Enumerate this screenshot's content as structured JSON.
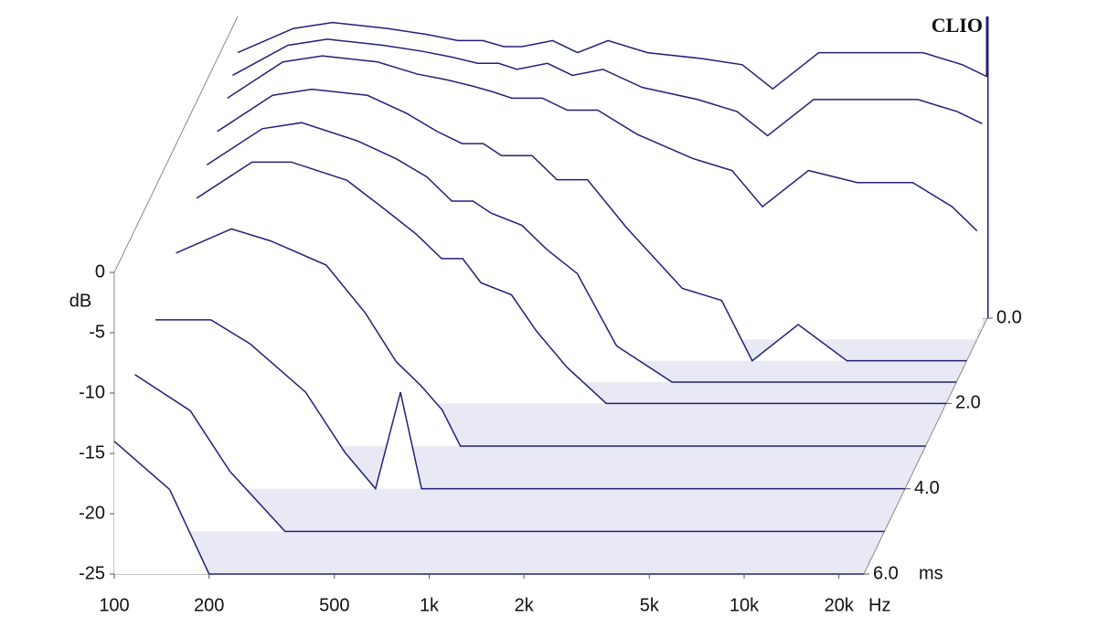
{
  "chart_data": {
    "type": "waterfall",
    "brand": "CLIO",
    "x_label": "Hz",
    "y_label": "dB",
    "z_label": "ms",
    "color": "#20207a",
    "xscale": "log",
    "xlim": [
      100,
      24000
    ],
    "ylim": [
      -25,
      0
    ],
    "zlim": [
      0,
      6
    ],
    "xticks": [
      100,
      200,
      500,
      {
        "value": 1000,
        "label": "1k"
      },
      {
        "value": 2000,
        "label": "2k"
      },
      {
        "value": 5000,
        "label": "5k"
      },
      {
        "value": 10000,
        "label": "10k"
      },
      {
        "value": 20000,
        "label": "20k"
      }
    ],
    "yticks": [
      0,
      -5,
      -10,
      -15,
      -20,
      -25
    ],
    "zticks": [
      {
        "value": 0,
        "label": "0.0"
      },
      {
        "value": 2,
        "label": "2.0"
      },
      {
        "value": 4,
        "label": "4.0"
      },
      {
        "value": 6,
        "label": "6.0"
      }
    ],
    "x": [
      100,
      150,
      200,
      300,
      400,
      500,
      600,
      700,
      800,
      1000,
      1200,
      1500,
      2000,
      3000,
      4000,
      5000,
      7000,
      10000,
      15000,
      20000,
      24000
    ],
    "slices": [
      {
        "t": 0,
        "values": [
          -3,
          -1,
          -0.5,
          -1,
          -1.5,
          -2,
          -2,
          -2.5,
          -2.5,
          -2,
          -3,
          -2,
          -3,
          -3.5,
          -4,
          -6,
          -3,
          -3,
          -3,
          -4,
          -5
        ]
      },
      {
        "t": 0.25,
        "values": [
          -4,
          -1.5,
          -1,
          -1.5,
          -2,
          -2.5,
          -3,
          -3,
          -3.5,
          -3,
          -4,
          -3.5,
          -5,
          -6,
          -7,
          -9,
          -6,
          -6,
          -6,
          -7,
          -8
        ]
      },
      {
        "t": 0.5,
        "values": [
          -5,
          -2,
          -1.5,
          -2,
          -3,
          -3.5,
          -4,
          -4.5,
          -5,
          -5,
          -6,
          -6,
          -8,
          -10,
          -11,
          -14,
          -11,
          -12,
          -12,
          -14,
          -16
        ]
      },
      {
        "t": 1,
        "values": [
          -6,
          -3,
          -2.5,
          -3,
          -4.5,
          -6,
          -7,
          -7,
          -8,
          -8,
          -10,
          -10,
          -14,
          -19,
          -20,
          -25,
          -22,
          -25,
          -25,
          -25,
          -25
        ]
      },
      {
        "t": 1.5,
        "values": [
          -7,
          -4,
          -3.5,
          -5,
          -6.5,
          -8,
          -10,
          -10,
          -11,
          -12,
          -14,
          -16,
          -22,
          -25,
          -25,
          -25,
          -25,
          -25,
          -25,
          -25,
          -25
        ]
      },
      {
        "t": 2,
        "values": [
          -8,
          -5,
          -5,
          -6.5,
          -9,
          -11,
          -13,
          -13,
          -15,
          -16,
          -19,
          -22,
          -25,
          -25,
          -25,
          -25,
          -25,
          -25,
          -25,
          -25,
          -25
        ]
      },
      {
        "t": 3,
        "values": [
          -9,
          -7,
          -8,
          -10,
          -14,
          -18,
          -20,
          -22,
          -25,
          -25,
          -25,
          -25,
          -25,
          -25,
          -25,
          -25,
          -25,
          -25,
          -25,
          -25,
          -25
        ]
      },
      {
        "t": 4,
        "values": [
          -11,
          -11,
          -13,
          -17,
          -22,
          -25,
          -17,
          -25,
          -25,
          -25,
          -25,
          -25,
          -25,
          -25,
          -25,
          -25,
          -25,
          -25,
          -25,
          -25,
          -25
        ]
      },
      {
        "t": 5,
        "values": [
          -12,
          -15,
          -20,
          -25,
          -25,
          -25,
          -25,
          -25,
          -25,
          -25,
          -25,
          -25,
          -25,
          -25,
          -25,
          -25,
          -25,
          -25,
          -25,
          -25,
          -25
        ]
      },
      {
        "t": 6,
        "values": [
          -14,
          -18,
          -25,
          -25,
          -25,
          -25,
          -25,
          -25,
          -25,
          -25,
          -25,
          -25,
          -25,
          -25,
          -25,
          -25,
          -25,
          -25,
          -25,
          -25,
          -25
        ]
      }
    ]
  }
}
